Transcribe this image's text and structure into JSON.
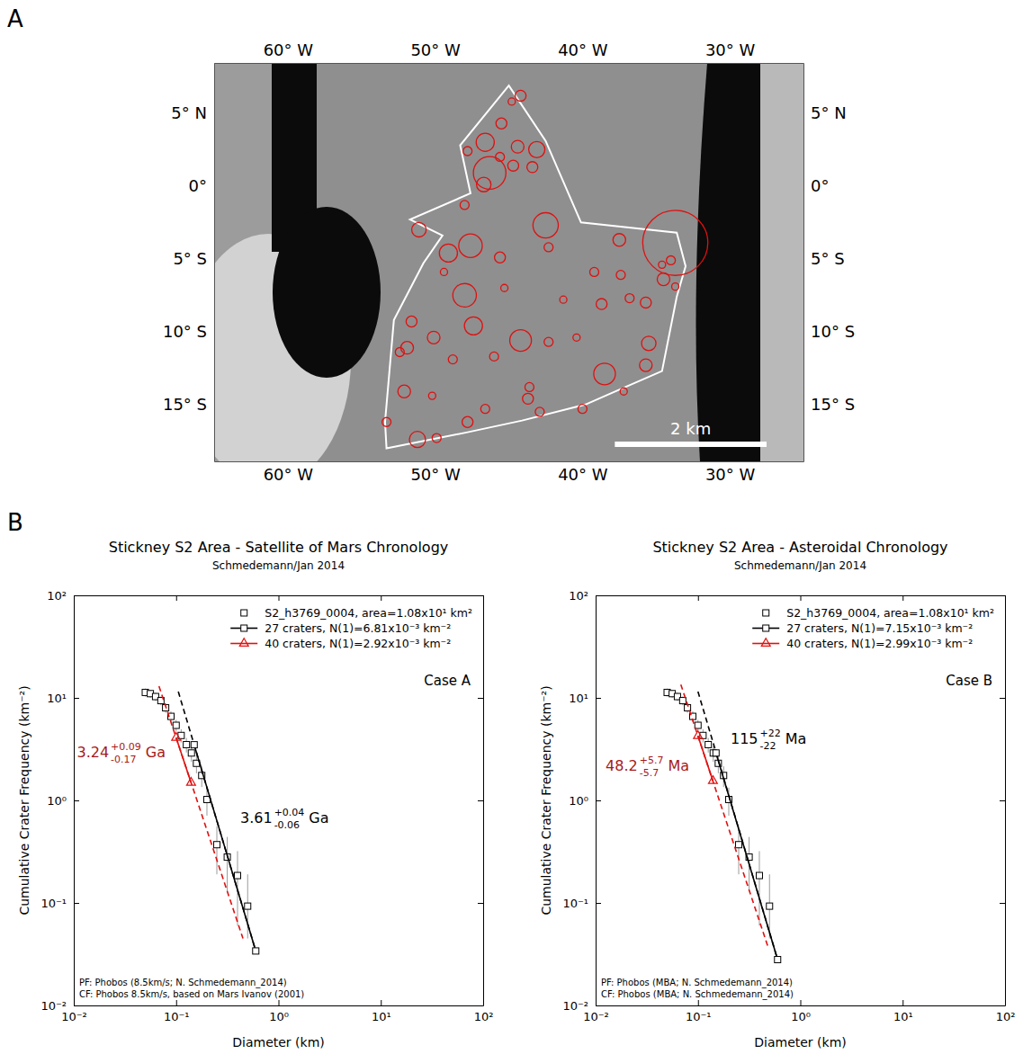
{
  "chart_data": [
    {
      "type": "map",
      "panel": "A",
      "xlim": [
        -65,
        -25
      ],
      "ylim": [
        -18.9,
        8.45
      ],
      "xticks": [
        {
          "value": -60,
          "label": "60° W"
        },
        {
          "value": -50,
          "label": "50° W"
        },
        {
          "value": -40,
          "label": "40° W"
        },
        {
          "value": -30,
          "label": "30° W"
        }
      ],
      "yticks": [
        {
          "value": 5,
          "label": "5° N"
        },
        {
          "value": 0,
          "label": "0°"
        },
        {
          "value": -5,
          "label": "5° S"
        },
        {
          "value": -10,
          "label": "10° S"
        },
        {
          "value": -15,
          "label": "15° S"
        }
      ],
      "outline": {
        "color": "#ffffff",
        "lon": [
          -45.0,
          -42.5,
          -40.1,
          -33.6,
          -33.0,
          -33.6,
          -34.6,
          -38.0,
          -39.8,
          -44.1,
          -47.8,
          -53.3,
          -53.4,
          -52.8,
          -50.8,
          -49.5,
          -51.7,
          -47.6,
          -48.3
        ],
        "lat": [
          6.9,
          3.1,
          -2.5,
          -3.2,
          -5.5,
          -7.6,
          -12.7,
          -14.2,
          -15.0,
          -16.1,
          -16.9,
          -18.0,
          -16.2,
          -9.2,
          -5.3,
          -3.4,
          -2.3,
          -0.5,
          2.8
        ]
      },
      "craters": {
        "color": "#e01010",
        "lon": [
          -44.2,
          -44.8,
          -46.6,
          -46.3,
          -46.7,
          -47.8,
          -45.5,
          -44.4,
          -43.1,
          -43.4,
          -44.7,
          -45.6,
          -42.5,
          -47.6,
          -49.1,
          -51.1,
          -48.0,
          -45.6,
          -42.3,
          -49.4,
          -33.7,
          -37.5,
          -39.2,
          -48.0,
          -47.4,
          -44.2,
          -38.5,
          -40.4,
          -42.3,
          -35.5,
          -35.7,
          -35.7,
          -34.5,
          -38.7,
          -36.8,
          -51.6,
          -51.9,
          -50.1,
          -52.1,
          -51.2,
          -49.9,
          -43.6,
          -43.7,
          -47.8,
          -46.6,
          -53.3,
          -52.4,
          -46.0,
          -42.9,
          -40.0,
          -37.4,
          -34.6,
          -34.0,
          -41.3,
          -33.7,
          -50.2,
          -45.3,
          -37.2,
          -48.8
        ],
        "lat": [
          6.2,
          5.8,
          3.0,
          0.9,
          0.1,
          2.4,
          4.3,
          2.7,
          2.5,
          1.3,
          1.4,
          2.0,
          -2.7,
          -4.1,
          -4.6,
          -3.0,
          -1.3,
          -4.9,
          -4.2,
          -5.9,
          -3.9,
          -3.7,
          -5.9,
          -7.5,
          -9.6,
          -10.6,
          -12.9,
          -10.4,
          -10.7,
          -10.8,
          -12.3,
          -8.0,
          -6.4,
          -8.1,
          -7.7,
          -9.3,
          -11.1,
          -10.4,
          -14.1,
          -17.4,
          -17.3,
          -13.8,
          -14.6,
          -16.2,
          -15.3,
          -16.2,
          -11.4,
          -11.7,
          -15.5,
          -15.3,
          -6.1,
          -5.4,
          -5.1,
          -7.8,
          -6.9,
          -14.4,
          -7.0,
          -14.1,
          -11.9
        ],
        "diameter": [
          0.74,
          0.49,
          1.23,
          2.21,
          0.98,
          0.61,
          0.74,
          0.86,
          1.1,
          0.74,
          0.74,
          0.61,
          1.72,
          1.6,
          1.23,
          0.98,
          0.61,
          0.74,
          0.61,
          0.49,
          4.42,
          0.86,
          0.61,
          1.6,
          1.23,
          1.47,
          1.47,
          0.49,
          0.61,
          0.98,
          0.86,
          0.74,
          0.86,
          0.74,
          0.61,
          0.74,
          0.86,
          0.86,
          0.86,
          1.1,
          0.61,
          0.61,
          0.74,
          0.74,
          0.61,
          0.61,
          0.61,
          0.61,
          0.61,
          0.61,
          0.61,
          0.49,
          0.61,
          0.49,
          0.49,
          0.49,
          0.49,
          0.49,
          0.61
        ]
      },
      "scale_bar": {
        "length": 10.3,
        "label": "2 km"
      }
    },
    {
      "type": "scatter",
      "panel": "B",
      "log": true,
      "title": "Stickney S2 Area - Satellite of Mars Chronology",
      "subtitle": "Schmedemann/Jan 2014",
      "x_label": "Diameter (km)",
      "y_label": "Cumulative Crater Frequency (km⁻²)",
      "xlim": [
        0.01,
        100
      ],
      "ylim": [
        0.01,
        100
      ],
      "xticks": [
        {
          "value": 0.01,
          "label": "10⁻²"
        },
        {
          "value": 0.1,
          "label": "10⁻¹"
        },
        {
          "value": 1,
          "label": "10⁰"
        },
        {
          "value": 10,
          "label": "10¹"
        },
        {
          "value": 100,
          "label": "10²"
        }
      ],
      "yticks": [
        {
          "value": 0.01,
          "label": "10⁻²"
        },
        {
          "value": 0.1,
          "label": "10⁻¹"
        },
        {
          "value": 1,
          "label": "10⁰"
        },
        {
          "value": 10,
          "label": "10¹"
        },
        {
          "value": 100,
          "label": "10²"
        }
      ],
      "legend": "upper right",
      "series": [
        {
          "name": "S2_h3769_0004, area=1.08x10¹ km²",
          "type": "scatter",
          "marker": "square",
          "color": "#000000",
          "x": [
            0.05,
            0.056,
            0.063,
            0.071,
            0.079,
            0.089,
            0.1,
            0.112,
            0.126,
            0.141,
            0.158,
            0.178,
            0.2,
            0.25,
            0.316,
            0.398,
            0.5
          ],
          "values": [
            11.3,
            11.0,
            10.3,
            9.4,
            8.0,
            6.6,
            5.4,
            4.3,
            3.5,
            2.9,
            2.3,
            1.75,
            1.02,
            0.37,
            0.28,
            0.185,
            0.093
          ],
          "errors": [
            [
              1.02,
              1.02
            ],
            [
              1.01,
              1.01
            ],
            [
              0.98,
              0.98
            ],
            [
              0.93,
              0.93
            ],
            [
              0.86,
              0.86
            ],
            [
              0.78,
              0.78
            ],
            [
              0.71,
              0.71
            ],
            [
              0.63,
              0.63
            ],
            [
              0.57,
              0.57
            ],
            [
              0.52,
              0.52
            ],
            [
              0.46,
              0.46
            ],
            [
              0.4,
              0.4
            ],
            [
              0.31,
              0.31
            ],
            [
              0.18,
              0.19
            ],
            [
              0.15,
              0.16
            ],
            [
              0.125,
              0.135
            ],
            [
              0.048,
              0.097
            ]
          ]
        },
        {
          "type": "line",
          "line_style": "dashed",
          "color": "#000000",
          "x": [
            0.105,
            0.6
          ],
          "values": [
            11.5,
            0.034
          ]
        },
        {
          "name": "27 craters, N(1)=6.81x10⁻³ km⁻²",
          "type": "line",
          "line_style": "solid",
          "marker": "square",
          "color": "#000000",
          "x": [
            0.15,
            0.6
          ],
          "values": [
            3.49,
            0.034
          ]
        },
        {
          "type": "line",
          "line_style": "dashed",
          "color": "#e01010",
          "x": [
            0.068,
            0.45
          ],
          "values": [
            13,
            0.045
          ]
        },
        {
          "name": "40 craters, N(1)=2.92x10⁻³ km⁻²",
          "type": "line",
          "line_style": "solid",
          "marker": "triangle",
          "color": "#e01010",
          "x": [
            0.1,
            0.14
          ],
          "values": [
            4.09,
            1.49
          ]
        }
      ],
      "age_labels": [
        {
          "age": 3.24,
          "plus": "+0.09",
          "minus": "-0.17",
          "unit": "Ga",
          "color": "#a81818"
        },
        {
          "age": 3.61,
          "plus": "+0.04",
          "minus": "-0.06",
          "unit": "Ga",
          "color": "#000000"
        }
      ],
      "annotation": "Case A",
      "notes": [
        "PF: Phobos (8.5km/s; N. Schmedemann_2014)",
        "CF: Phobos 8.5km/s, based on Mars Ivanov (2001)"
      ]
    },
    {
      "type": "scatter",
      "log": true,
      "title": "Stickney S2 Area - Asteroidal Chronology",
      "subtitle": "Schmedemann/Jan 2014",
      "x_label": "Diameter (km)",
      "y_label": "Cumulative Crater Frequency (km⁻²)",
      "xlim": [
        0.01,
        100
      ],
      "ylim": [
        0.01,
        100
      ],
      "xticks": [
        {
          "value": 0.01,
          "label": "10⁻²"
        },
        {
          "value": 0.1,
          "label": "10⁻¹"
        },
        {
          "value": 1,
          "label": "10⁰"
        },
        {
          "value": 10,
          "label": "10¹"
        },
        {
          "value": 100,
          "label": "10²"
        }
      ],
      "yticks": [
        {
          "value": 0.01,
          "label": "10⁻²"
        },
        {
          "value": 0.1,
          "label": "10⁻¹"
        },
        {
          "value": 1,
          "label": "10⁰"
        },
        {
          "value": 10,
          "label": "10¹"
        },
        {
          "value": 100,
          "label": "10²"
        }
      ],
      "legend": "upper right",
      "series": [
        {
          "name": "S2_h3769_0004, area=1.08x10¹ km²",
          "type": "scatter",
          "marker": "square",
          "color": "#000000",
          "x": [
            0.05,
            0.056,
            0.063,
            0.071,
            0.079,
            0.089,
            0.1,
            0.112,
            0.126,
            0.141,
            0.158,
            0.178,
            0.2,
            0.25,
            0.316,
            0.398,
            0.5
          ],
          "values": [
            11.3,
            11.0,
            10.3,
            9.4,
            8.0,
            6.6,
            5.4,
            4.3,
            3.5,
            2.9,
            2.3,
            1.75,
            1.02,
            0.37,
            0.28,
            0.185,
            0.093
          ],
          "errors": [
            [
              1.02,
              1.02
            ],
            [
              1.01,
              1.01
            ],
            [
              0.98,
              0.98
            ],
            [
              0.93,
              0.93
            ],
            [
              0.86,
              0.86
            ],
            [
              0.78,
              0.78
            ],
            [
              0.71,
              0.71
            ],
            [
              0.63,
              0.63
            ],
            [
              0.57,
              0.57
            ],
            [
              0.52,
              0.52
            ],
            [
              0.46,
              0.46
            ],
            [
              0.4,
              0.4
            ],
            [
              0.31,
              0.31
            ],
            [
              0.18,
              0.19
            ],
            [
              0.15,
              0.16
            ],
            [
              0.125,
              0.135
            ],
            [
              0.048,
              0.097
            ]
          ]
        },
        {
          "type": "line",
          "line_style": "dashed",
          "color": "#000000",
          "x": [
            0.1,
            0.6
          ],
          "values": [
            11.5,
            0.028
          ]
        },
        {
          "name": "27 craters, N(1)=7.15x10⁻³ km⁻²",
          "type": "line",
          "line_style": "solid",
          "marker": "square",
          "color": "#000000",
          "x": [
            0.15,
            0.6
          ],
          "values": [
            2.9,
            0.028
          ]
        },
        {
          "type": "line",
          "line_style": "dashed",
          "color": "#e01010",
          "x": [
            0.068,
            0.48
          ],
          "values": [
            13.5,
            0.038
          ]
        },
        {
          "name": "40 craters, N(1)=2.99x10⁻³ km⁻²",
          "type": "line",
          "line_style": "solid",
          "marker": "triangle",
          "color": "#e01010",
          "x": [
            0.1,
            0.14
          ],
          "values": [
            4.25,
            1.55
          ]
        }
      ],
      "age_labels": [
        {
          "age": 48.2,
          "plus": "+5.7",
          "minus": "-5.7",
          "unit": "Ma",
          "color": "#a81818"
        },
        {
          "age": 115,
          "plus": "+22",
          "minus": "-22",
          "unit": "Ma",
          "color": "#000000"
        }
      ],
      "annotation": "Case B",
      "notes": [
        "PF: Phobos (MBA; N. Schmedemann_2014)",
        "CF: Phobos (MBA; N. Schmedemann_2014)"
      ]
    }
  ]
}
